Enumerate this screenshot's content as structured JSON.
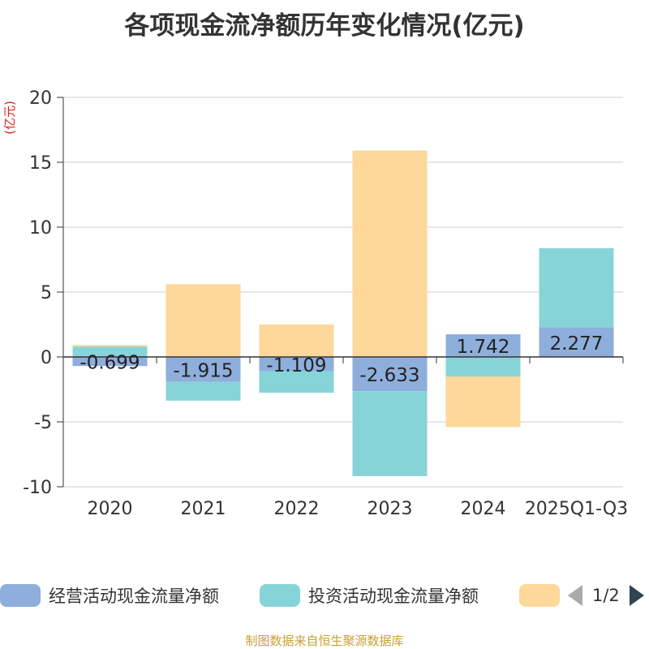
{
  "chart_data": {
    "type": "bar",
    "stacked": true,
    "title": "各项现金流净额历年变化情况(亿元)",
    "ylabel": "(亿元)",
    "ylim": [
      -10,
      20
    ],
    "yticks": [
      -10,
      -5,
      0,
      5,
      10,
      15,
      20
    ],
    "grid": true,
    "legend_position": "bottom",
    "categories": [
      "2020",
      "2021",
      "2022",
      "2023",
      "2024",
      "2025Q1-Q3"
    ],
    "series": [
      {
        "name": "经营活动现金流量净额",
        "color": "#8eaedc",
        "values": [
          -0.699,
          -1.915,
          -1.109,
          -2.633,
          1.742,
          2.277
        ],
        "labels": [
          "-0.699",
          "-1.915",
          "-1.109",
          "-2.633",
          "1.742",
          "2.277"
        ]
      },
      {
        "name": "投资活动现金流量净额",
        "color": "#87d4d8",
        "values": [
          0.8,
          -1.45,
          -1.65,
          -6.55,
          -1.5,
          6.1
        ]
      },
      {
        "name": "",
        "color": "#fed79a",
        "values": [
          0.12,
          5.6,
          2.5,
          15.9,
          -3.9,
          0
        ]
      }
    ]
  },
  "legend": {
    "items": [
      {
        "label": "经营活动现金流量净额",
        "color": "#8eaedc"
      },
      {
        "label": "投资活动现金流量净额",
        "color": "#87d4d8"
      },
      {
        "label": "",
        "color": "#fed79a"
      }
    ],
    "page_indicator": "1/2"
  },
  "footer": {
    "source": "制图数据来自恒生聚源数据库"
  }
}
